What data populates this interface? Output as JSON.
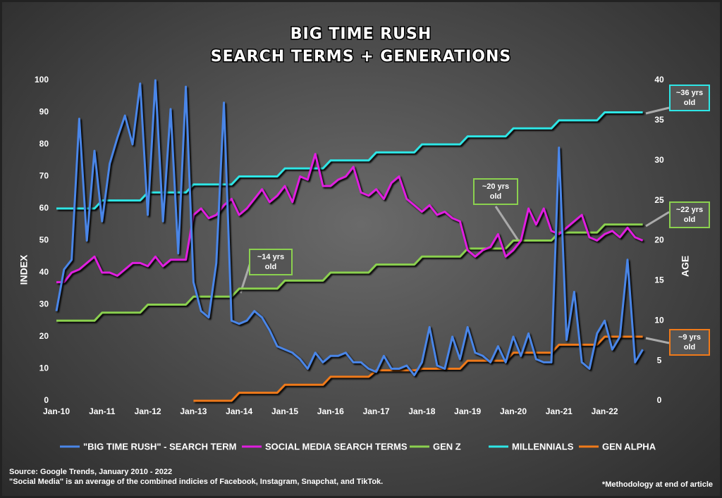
{
  "chart_data": {
    "type": "line",
    "title": "BIG TIME RUSH",
    "subtitle": "SEARCH TERMS + GENERATIONS",
    "y_label": "INDEX",
    "y2_label": "AGE",
    "categories": [
      "Jan-10",
      null,
      null,
      null,
      null,
      null,
      "Jan-11",
      null,
      null,
      null,
      null,
      null,
      "Jan-12",
      null,
      null,
      null,
      null,
      null,
      "Jan-13",
      null,
      null,
      null,
      null,
      null,
      "Jan-14",
      null,
      null,
      null,
      null,
      null,
      "Jan-15",
      null,
      null,
      null,
      null,
      null,
      "Jan-16",
      null,
      null,
      null,
      null,
      null,
      "Jan-17",
      null,
      null,
      null,
      null,
      null,
      "Jan-18",
      null,
      null,
      null,
      null,
      null,
      "Jan-19",
      null,
      null,
      null,
      null,
      null,
      "Jan-20",
      null,
      null,
      null,
      null,
      null,
      "Jan-21",
      null,
      null,
      null,
      null,
      null,
      "Jan-22",
      null,
      null,
      null,
      null,
      null
    ],
    "ylim": [
      0,
      100
    ],
    "yticks": [
      0,
      10,
      20,
      30,
      40,
      50,
      60,
      70,
      80,
      90,
      100
    ],
    "y2lim": [
      0,
      40
    ],
    "y2ticks": [
      0,
      5,
      10,
      15,
      20,
      25,
      30,
      35,
      40
    ],
    "grid": false,
    "series": [
      {
        "name": "\"BIG TIME RUSH\" - SEARCH TERM",
        "color": "#4a86e8",
        "values": [
          28,
          41,
          44,
          88,
          50,
          78,
          56,
          74,
          82,
          89,
          80,
          99,
          58,
          100,
          56,
          91,
          46,
          98,
          37,
          28,
          26,
          43,
          93,
          25,
          24,
          25,
          28,
          26,
          22,
          17,
          16,
          15,
          13,
          10,
          15,
          12,
          14,
          14,
          15,
          12,
          12,
          10,
          9,
          14,
          10,
          10,
          11,
          8,
          12,
          23,
          11,
          10,
          20,
          13,
          23,
          15,
          14,
          12,
          17,
          12,
          20,
          14,
          21,
          13,
          12,
          12,
          79,
          19,
          34,
          12,
          10,
          21,
          25,
          16,
          20,
          44,
          12,
          16
        ]
      },
      {
        "name": "SOCIAL MEDIA SEARCH TERMS",
        "color": "#e01ee0",
        "values": [
          37,
          37,
          40,
          41,
          43,
          45,
          40,
          40,
          39,
          41,
          43,
          43,
          42,
          45,
          42,
          44,
          44,
          44,
          58,
          60,
          57,
          58,
          61,
          63,
          58,
          60,
          63,
          66,
          62,
          64,
          67,
          62,
          70,
          69,
          77,
          67,
          67,
          69,
          70,
          73,
          65,
          64,
          66,
          63,
          68,
          70,
          63,
          61,
          59,
          61,
          58,
          59,
          57,
          56,
          47,
          45,
          47,
          48,
          52,
          45,
          47,
          50,
          60,
          55,
          60,
          53,
          52,
          54,
          56,
          58,
          51,
          50,
          52,
          53,
          51,
          54,
          51,
          50
        ]
      },
      {
        "name": "GEN Z",
        "color": "#8bd14f",
        "axis": "y2",
        "values": [
          10,
          10,
          10,
          10,
          10,
          10,
          11,
          11,
          11,
          11,
          11,
          11,
          12,
          12,
          12,
          12,
          12,
          12,
          13,
          13,
          13,
          13,
          13,
          13,
          14,
          14,
          14,
          14,
          14,
          14,
          15,
          15,
          15,
          15,
          15,
          15,
          16,
          16,
          16,
          16,
          16,
          16,
          17,
          17,
          17,
          17,
          17,
          17,
          18,
          18,
          18,
          18,
          18,
          18,
          19,
          19,
          19,
          19,
          19,
          19,
          20,
          20,
          20,
          20,
          20,
          20,
          21,
          21,
          21,
          21,
          21,
          21,
          22,
          22,
          22,
          22,
          22,
          22
        ]
      },
      {
        "name": "MILLENNIALS",
        "color": "#2ee6e6",
        "axis": "y2",
        "values": [
          24,
          24,
          24,
          24,
          24,
          24,
          25,
          25,
          25,
          25,
          25,
          25,
          26,
          26,
          26,
          26,
          26,
          26,
          27,
          27,
          27,
          27,
          27,
          27,
          28,
          28,
          28,
          28,
          28,
          28,
          29,
          29,
          29,
          29,
          29,
          29,
          30,
          30,
          30,
          30,
          30,
          30,
          31,
          31,
          31,
          31,
          31,
          31,
          32,
          32,
          32,
          32,
          32,
          32,
          33,
          33,
          33,
          33,
          33,
          33,
          34,
          34,
          34,
          34,
          34,
          34,
          35,
          35,
          35,
          35,
          35,
          35,
          36,
          36,
          36,
          36,
          36,
          36
        ]
      },
      {
        "name": "GEN ALPHA",
        "color": "#f07a1a",
        "axis": "y2",
        "values": [
          null,
          null,
          null,
          null,
          null,
          null,
          null,
          null,
          null,
          null,
          null,
          null,
          null,
          null,
          null,
          null,
          null,
          null,
          0,
          0,
          0,
          0,
          0,
          0,
          1,
          1,
          1,
          1,
          1,
          1,
          2,
          2,
          2,
          2,
          2,
          2,
          3,
          3,
          3,
          3,
          3,
          3,
          3.8,
          3.8,
          3.8,
          3.8,
          3.8,
          3.8,
          4,
          4,
          4,
          4,
          4,
          4,
          5,
          5,
          5,
          5,
          5,
          5,
          6,
          6,
          6,
          6,
          6,
          6,
          7,
          7,
          7,
          7,
          7,
          7,
          8,
          8,
          8,
          8,
          8,
          8
        ]
      }
    ],
    "annotations": [
      {
        "text": "~14 yrs old",
        "color": "#8bd14f"
      },
      {
        "text": "~20 yrs old",
        "color": "#8bd14f"
      },
      {
        "text": "~22 yrs old",
        "color": "#8bd14f"
      },
      {
        "text": "~36 yrs old",
        "color": "#2ee6e6"
      },
      {
        "text": "~9 yrs old",
        "color": "#f07a1a"
      }
    ],
    "source": [
      "Source: Google Trends, January 2010 - 2022",
      "\"Social Media\" is an average of the combined indicies of Facebook, Instagram, Snapchat, and TikTok."
    ],
    "note": "*Methodology at end of article"
  }
}
